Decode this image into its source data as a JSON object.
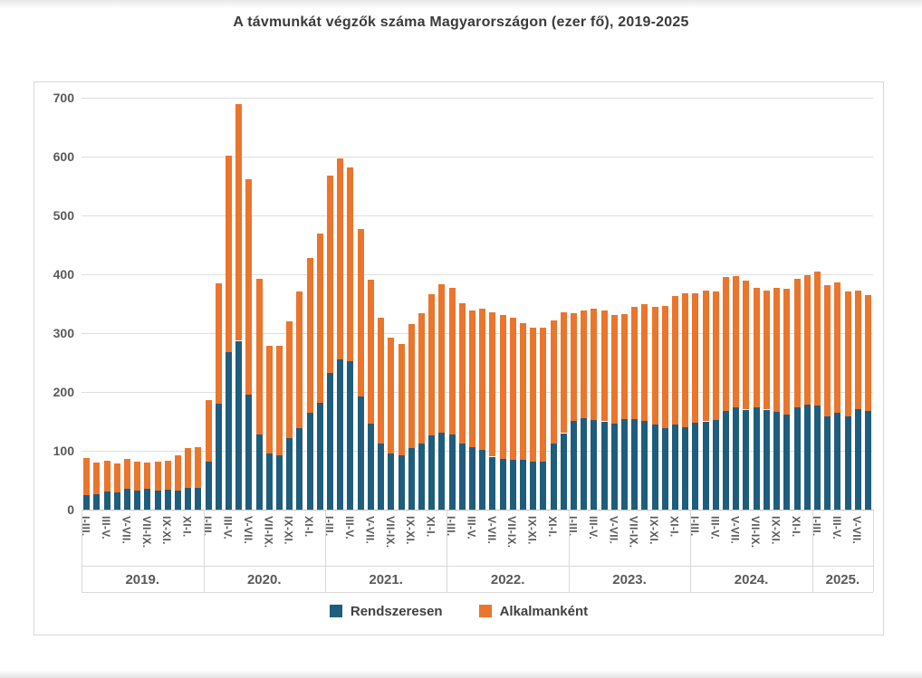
{
  "page": {
    "title": "A távmunkát végzők száma Magyarországon (ezer fő), 2019-2025"
  },
  "chart_data": {
    "type": "bar",
    "stacked": true,
    "title": "A távmunkát végzők száma Magyarországon (ezer fő), 2019-2025",
    "xlabel": "",
    "ylabel": "",
    "ylim": [
      0,
      700
    ],
    "yticks": [
      700,
      600,
      500,
      400,
      300,
      200,
      100,
      0
    ],
    "grid": true,
    "legend_position": "bottom",
    "series": [
      {
        "name": "Rendszeresen",
        "color": "#1F5D7D"
      },
      {
        "name": "Alkalmanként",
        "color": "#EA752D"
      }
    ],
    "groups": [
      {
        "year": "2019.",
        "tick_labels": [
          "I-III.",
          "III-V.",
          "V-VII.",
          "VII-IX.",
          "IX-XI.",
          "XI-I."
        ],
        "rendszeresen": [
          25,
          27,
          31,
          29,
          36,
          32,
          35,
          33,
          34,
          33,
          37,
          37
        ],
        "alkalmankent": [
          62,
          53,
          52,
          49,
          50,
          50,
          45,
          49,
          49,
          60,
          67,
          69
        ]
      },
      {
        "year": "2020.",
        "tick_labels": [
          "I-III.",
          "III-V.",
          "V-VII.",
          "VII-IX.",
          "IX-XI.",
          "XI-I."
        ],
        "rendszeresen": [
          82,
          180,
          268,
          287,
          196,
          127,
          95,
          92,
          122,
          138,
          165,
          182
        ],
        "alkalmankent": [
          104,
          205,
          334,
          402,
          365,
          266,
          183,
          187,
          198,
          233,
          263,
          287
        ]
      },
      {
        "year": "2021.",
        "tick_labels": [
          "I-III.",
          "III-V.",
          "V-VII.",
          "VII-IX.",
          "IX-XI.",
          "XI-I."
        ],
        "rendszeresen": [
          233,
          256,
          252,
          193,
          146,
          112,
          96,
          92,
          104,
          113,
          126,
          131
        ],
        "alkalmankent": [
          335,
          341,
          329,
          284,
          245,
          214,
          196,
          189,
          211,
          221,
          240,
          252
        ]
      },
      {
        "year": "2022.",
        "tick_labels": [
          "I-III.",
          "III-V.",
          "V-VII.",
          "VII-IX.",
          "IX-XI.",
          "XI-I."
        ],
        "rendszeresen": [
          128,
          112,
          106,
          102,
          90,
          86,
          84,
          84,
          82,
          82,
          112,
          130
        ],
        "alkalmankent": [
          249,
          239,
          233,
          239,
          246,
          245,
          242,
          233,
          228,
          227,
          209,
          206
        ]
      },
      {
        "year": "2023.",
        "tick_labels": [
          "I-III.",
          "III-V.",
          "V-VII.",
          "VII-IX.",
          "IX-XI.",
          "XI-I."
        ],
        "rendszeresen": [
          151,
          155,
          153,
          150,
          146,
          154,
          154,
          151,
          144,
          139,
          145,
          140
        ],
        "alkalmankent": [
          183,
          183,
          188,
          188,
          185,
          179,
          190,
          198,
          201,
          207,
          218,
          227
        ]
      },
      {
        "year": "2024.",
        "tick_labels": [
          "I-III.",
          "III-V.",
          "V-VII.",
          "VII-IX.",
          "IX-XI.",
          "XI-I."
        ],
        "rendszeresen": [
          148,
          150,
          152,
          167,
          174,
          170,
          174,
          170,
          166,
          162,
          174,
          178
        ],
        "alkalmankent": [
          220,
          223,
          219,
          228,
          223,
          219,
          203,
          202,
          211,
          213,
          219,
          220
        ]
      },
      {
        "year": "2025.",
        "tick_labels": [
          "I-III.",
          "III-V.",
          "V-VII."
        ],
        "rendszeresen": [
          177,
          158,
          164,
          158,
          171,
          168
        ],
        "alkalmankent": [
          227,
          224,
          222,
          213,
          202,
          197
        ]
      }
    ]
  },
  "colors": {
    "rendszeresen": "#1F5D7D",
    "alkalmankent": "#EA752D",
    "gridline": "#dedede",
    "axis_text": "#595959",
    "title_text": "#3a3a3a"
  }
}
